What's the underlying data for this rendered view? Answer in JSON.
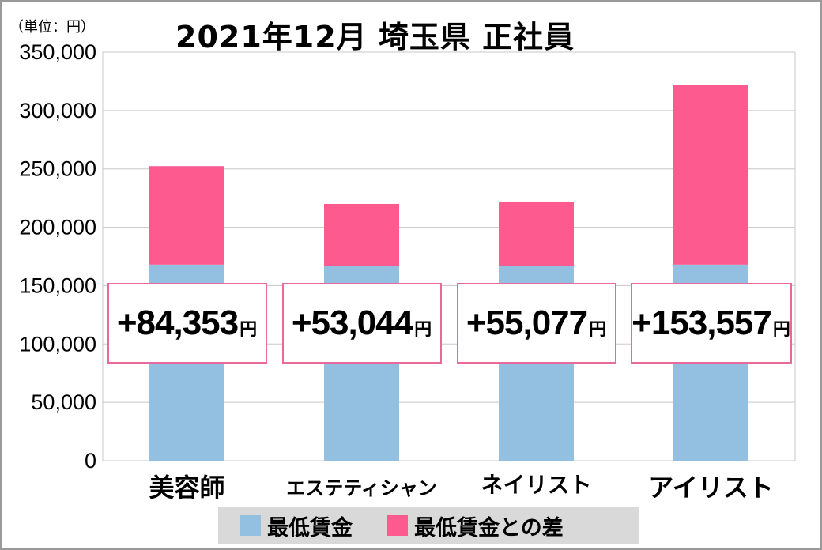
{
  "unit_label": "（単位：円）",
  "title": "2021年12月 埼玉県 正社員",
  "colors": {
    "base": "#93bfe0",
    "diff": "#fd5b8f",
    "pill_border": "#e86a9a",
    "grid": "#c8c8c8"
  },
  "legend": [
    {
      "label": "最低賃金",
      "color": "#93bfe0"
    },
    {
      "label": "最低賃金との差",
      "color": "#fd5b8f"
    }
  ],
  "annotations": [
    {
      "value": "+84,353",
      "unit": "円"
    },
    {
      "value": "+53,044",
      "unit": "円"
    },
    {
      "value": "+55,077",
      "unit": "円"
    },
    {
      "value": "+153,557",
      "unit": "円"
    }
  ],
  "chart_data": {
    "type": "bar",
    "stacked": true,
    "categories": [
      "美容師",
      "エステティシャン",
      "ネイリスト",
      "アイリスト"
    ],
    "series": [
      {
        "name": "最低賃金",
        "values": [
          168000,
          167000,
          167000,
          168000
        ]
      },
      {
        "name": "最低賃金との差",
        "values": [
          84353,
          53044,
          55077,
          153557
        ]
      }
    ],
    "yticks": [
      "0",
      "50,000",
      "100,000",
      "150,000",
      "200,000",
      "250,000",
      "300,000",
      "350,000"
    ],
    "ylim": [
      0,
      350000
    ],
    "grid": true,
    "legend_position": "bottom"
  }
}
